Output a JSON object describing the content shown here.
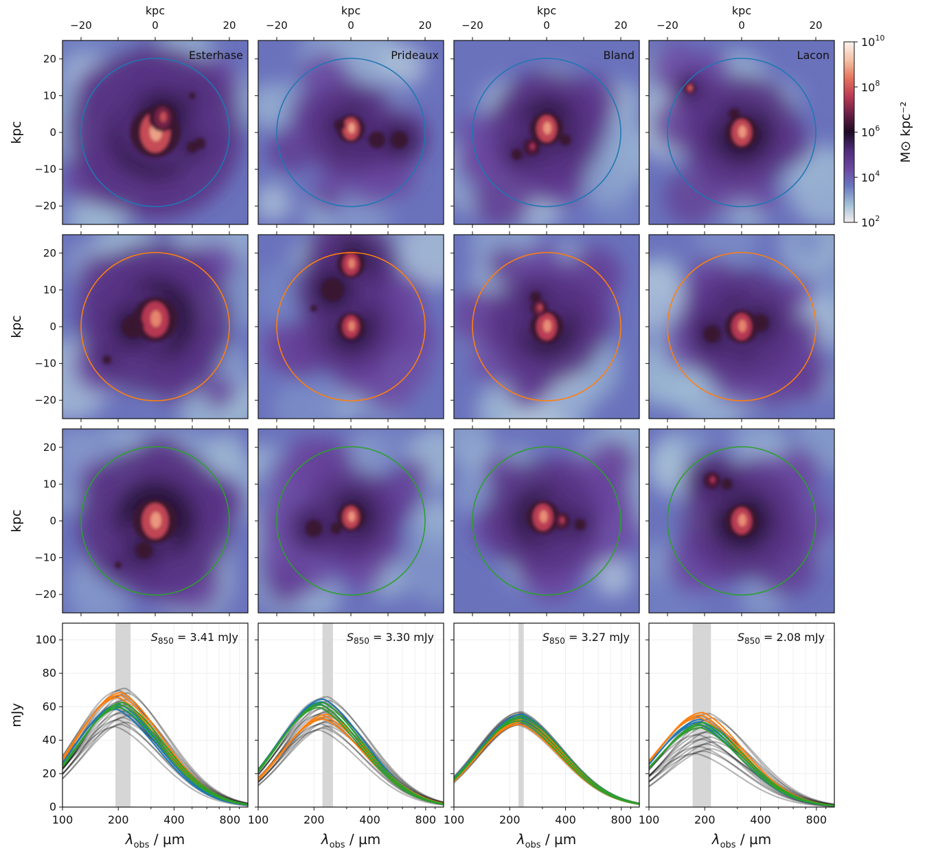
{
  "figure": {
    "columns": [
      "Esterhase",
      "Prideaux",
      "Bland",
      "Lacon"
    ],
    "row_colors": [
      "#1f77b4",
      "#ff7f0e",
      "#2ca02c"
    ],
    "spatial_axes": {
      "xlabel": "kpc",
      "ylabel": "kpc",
      "lim": [
        -25,
        25
      ],
      "ticks": [
        -20,
        -10,
        0,
        10,
        20
      ],
      "top_ticks": [
        -20,
        0,
        20
      ],
      "aperture_radius_kpc": 20
    },
    "colorbar": {
      "label": "M⊙ kpc⁻²",
      "range_log": [
        2,
        10
      ],
      "ticks": [
        {
          "base": "10",
          "exp": "2"
        },
        {
          "base": "10",
          "exp": "4"
        },
        {
          "base": "10",
          "exp": "6"
        },
        {
          "base": "10",
          "exp": "8"
        },
        {
          "base": "10",
          "exp": "10"
        }
      ],
      "colormap": [
        "#f2ecef",
        "#a2bfd6",
        "#6a78c0",
        "#6b46a0",
        "#4f2b78",
        "#1d0b24",
        "#6a1f45",
        "#bd3a55",
        "#e5745c",
        "#f4c2a6",
        "#fbf3ef"
      ]
    },
    "sed_axes": {
      "xlabel": "λ",
      "xlabel_sub": "obs",
      "xlabel_unit": " / µm",
      "ylabel": "mJy",
      "xlim": [
        100,
        1000
      ],
      "ylim": [
        0,
        110
      ],
      "yticks": [
        0,
        20,
        40,
        60,
        80,
        100
      ],
      "xticks": [
        100,
        200,
        400,
        800
      ],
      "log_x": true
    }
  },
  "chart_data": [
    {
      "type": "line",
      "title": "Esterhase",
      "annotation": {
        "label": "S",
        "sub": "850",
        "value": " = 3.41 mJy"
      },
      "peak_band_um": [
        193,
        233
      ],
      "series": [
        {
          "color": "#1f77b4",
          "values": [
            {
              "peak_um": 200,
              "peak_mjy": 60
            }
          ]
        },
        {
          "color": "#ff7f0e",
          "values": [
            {
              "peak_um": 205,
              "peak_mjy": 67
            }
          ]
        },
        {
          "color": "#2ca02c",
          "values": [
            {
              "peak_um": 210,
              "peak_mjy": 61
            }
          ]
        }
      ],
      "gray_peak_um": [
        195,
        232
      ],
      "gray_peak_mjy": [
        48,
        71
      ]
    },
    {
      "type": "line",
      "title": "Prideaux",
      "annotation": {
        "label": "S",
        "sub": "850",
        "value": " = 3.30 mJy"
      },
      "peak_band_um": [
        222,
        253
      ],
      "series": [
        {
          "color": "#1f77b4",
          "values": [
            {
              "peak_um": 222,
              "peak_mjy": 63
            }
          ]
        },
        {
          "color": "#ff7f0e",
          "values": [
            {
              "peak_um": 232,
              "peak_mjy": 54
            }
          ]
        },
        {
          "color": "#2ca02c",
          "values": [
            {
              "peak_um": 220,
              "peak_mjy": 61
            }
          ]
        }
      ],
      "gray_peak_um": [
        215,
        250
      ],
      "gray_peak_mjy": [
        46,
        66
      ]
    },
    {
      "type": "line",
      "title": "Bland",
      "annotation": {
        "label": "S",
        "sub": "850",
        "value": " = 3.27 mJy"
      },
      "peak_band_um": [
        223,
        238
      ],
      "series": [
        {
          "color": "#1f77b4",
          "values": [
            {
              "peak_um": 230,
              "peak_mjy": 54
            }
          ]
        },
        {
          "color": "#ff7f0e",
          "values": [
            {
              "peak_um": 232,
              "peak_mjy": 51
            }
          ]
        },
        {
          "color": "#2ca02c",
          "values": [
            {
              "peak_um": 231,
              "peak_mjy": 53
            }
          ]
        }
      ],
      "gray_peak_um": [
        226,
        238
      ],
      "gray_peak_mjy": [
        49,
        57
      ]
    },
    {
      "type": "line",
      "title": "Lacon",
      "annotation": {
        "label": "S",
        "sub": "850",
        "value": " = 2.08 mJy"
      },
      "peak_band_um": [
        172,
        216
      ],
      "series": [
        {
          "color": "#1f77b4",
          "values": [
            {
              "peak_um": 190,
              "peak_mjy": 51
            }
          ]
        },
        {
          "color": "#ff7f0e",
          "values": [
            {
              "peak_um": 192,
              "peak_mjy": 55
            }
          ]
        },
        {
          "color": "#2ca02c",
          "values": [
            {
              "peak_um": 195,
              "peak_mjy": 49
            }
          ]
        }
      ],
      "gray_peak_um": [
        180,
        230
      ],
      "gray_peak_mjy": [
        32,
        56
      ]
    }
  ],
  "map_features": [
    [
      [
        {
          "x": 0,
          "y": 0,
          "s": 9,
          "l": 8.5
        },
        {
          "x": 2,
          "y": 4,
          "s": 5,
          "l": 7.5
        },
        {
          "x": 12,
          "y": -3,
          "s": 2,
          "l": 6.5
        },
        {
          "x": 10,
          "y": -4,
          "s": 2,
          "l": 6.2
        },
        {
          "x": 10,
          "y": 10,
          "s": 1.2,
          "l": 6.0
        }
      ],
      [
        {
          "x": 0,
          "y": 2,
          "s": 8,
          "l": 8.2
        },
        {
          "x": -6,
          "y": 0,
          "s": 4,
          "l": 7.0
        },
        {
          "x": -13,
          "y": -9,
          "s": 1.5,
          "l": 6.5
        }
      ],
      [
        {
          "x": 0,
          "y": 0,
          "s": 8,
          "l": 8.4
        },
        {
          "x": -3,
          "y": -8,
          "s": 3,
          "l": 7.0
        },
        {
          "x": -10,
          "y": -12,
          "s": 1.2,
          "l": 6.0
        }
      ]
    ],
    [
      [
        {
          "x": 0,
          "y": 1,
          "s": 5,
          "l": 8.5
        },
        {
          "x": 7,
          "y": -2,
          "s": 3,
          "l": 6.8
        },
        {
          "x": 13,
          "y": -2,
          "s": 3,
          "l": 6.6
        },
        {
          "x": -3,
          "y": 2,
          "s": 2,
          "l": 6.8
        }
      ],
      [
        {
          "x": 0,
          "y": 17,
          "s": 5,
          "l": 8.2
        },
        {
          "x": 0,
          "y": 0,
          "s": 5,
          "l": 8.2
        },
        {
          "x": -10,
          "y": 5,
          "s": 1.2,
          "l": 6.2
        },
        {
          "x": -5,
          "y": 10,
          "s": 4,
          "l": 6.3
        }
      ],
      [
        {
          "x": 0,
          "y": 1,
          "s": 5,
          "l": 8.4
        },
        {
          "x": -10,
          "y": -2,
          "s": 3,
          "l": 6.8
        },
        {
          "x": -4,
          "y": -2,
          "s": 2,
          "l": 6.8
        }
      ]
    ],
    [
      [
        {
          "x": 0,
          "y": 1,
          "s": 6,
          "l": 8.4
        },
        {
          "x": -4,
          "y": -4,
          "s": 3,
          "l": 7.2
        },
        {
          "x": -8,
          "y": -6,
          "s": 2,
          "l": 6.8
        },
        {
          "x": 5,
          "y": -2,
          "s": 2,
          "l": 6.5
        }
      ],
      [
        {
          "x": 0,
          "y": 0,
          "s": 6,
          "l": 8.3
        },
        {
          "x": -2,
          "y": 5,
          "s": 3,
          "l": 7.5
        },
        {
          "x": -3,
          "y": 8,
          "s": 2,
          "l": 6.8
        }
      ],
      [
        {
          "x": -1,
          "y": 1,
          "s": 6,
          "l": 8.3
        },
        {
          "x": 4,
          "y": 0,
          "s": 3,
          "l": 7.3
        },
        {
          "x": 9,
          "y": -1,
          "s": 2,
          "l": 6.6
        }
      ]
    ],
    [
      [
        {
          "x": 0,
          "y": 0,
          "s": 6,
          "l": 8.4
        },
        {
          "x": -14,
          "y": 12,
          "s": 2,
          "l": 8.0
        },
        {
          "x": -2,
          "y": 5,
          "s": 2,
          "l": 6.8
        }
      ],
      [
        {
          "x": 0,
          "y": 0,
          "s": 6,
          "l": 8.2
        },
        {
          "x": -8,
          "y": -2,
          "s": 3,
          "l": 6.7
        },
        {
          "x": 5,
          "y": 1,
          "s": 3,
          "l": 6.7
        }
      ],
      [
        {
          "x": 0,
          "y": 0,
          "s": 6,
          "l": 8.3
        },
        {
          "x": -8,
          "y": 11,
          "s": 3,
          "l": 7.2
        },
        {
          "x": -4,
          "y": 10,
          "s": 2,
          "l": 6.8
        }
      ]
    ]
  ]
}
